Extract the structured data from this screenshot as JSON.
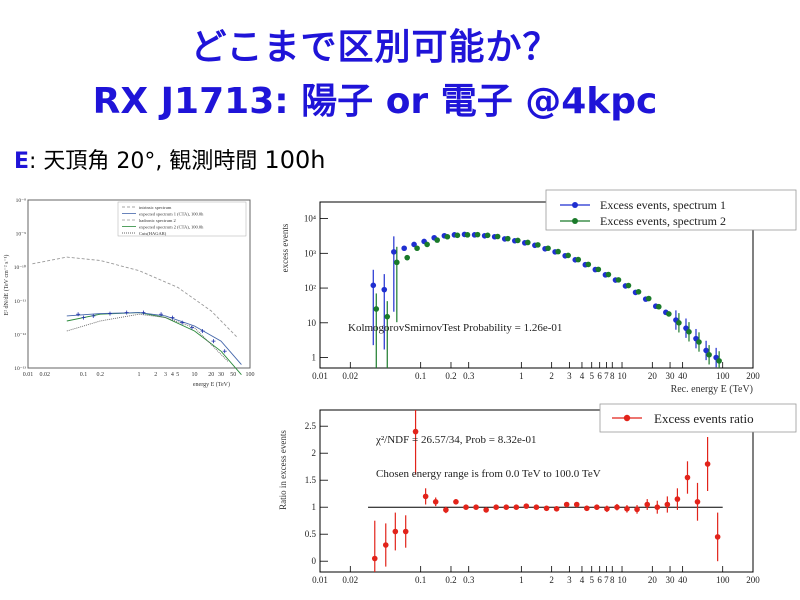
{
  "header": {
    "title_line1": "どこまで区別可能か？",
    "title_line2": "RX J1713: 陽子 or 電子 @4kpc",
    "sub_prefix": "E",
    "sub_text": ": 天頂角 20°, 観測時間",
    "sub_hours": "100h"
  },
  "left_panel": {
    "ylabel": "E² dN/dE (TeV cm⁻² s⁻¹)",
    "xlabel": "energy E (TeV)",
    "legend": [
      "intrinsic spectrum",
      "expected spectrum 1 (CTA), 100.0h",
      "hadronic spectrum 2",
      "expected spectrum 2 (CTA), 100.0h",
      "Cuts(HAGAR)"
    ],
    "x_ticks": [
      "0.01",
      "0.02",
      "0.1",
      "0.2",
      "1",
      "2",
      "3",
      "4",
      "5",
      "10",
      "20",
      "30",
      "50",
      "100"
    ],
    "y_ticks": [
      "10⁻⁸",
      "10⁻⁹",
      "10⁻¹⁰",
      "10⁻¹¹",
      "10⁻¹²",
      "10⁻¹³"
    ]
  },
  "chart_data": [
    {
      "type": "scatter",
      "title": "",
      "xlabel": "Rec. energy E (TeV)",
      "ylabel": "excess events",
      "xscale": "log",
      "yscale": "log",
      "xlim": [
        0.01,
        200
      ],
      "ylim": [
        0.5,
        30000
      ],
      "x_ticks": [
        "0.01",
        "0.02",
        "0.1",
        "0.2",
        "0.3",
        "1",
        "2",
        "3",
        "4",
        "5",
        "6",
        "7",
        "8",
        "10",
        "20",
        "30",
        "40",
        "100",
        "200"
      ],
      "y_ticks": [
        "1",
        "10",
        "10²",
        "10³",
        "10⁴"
      ],
      "legend_position": "top-right",
      "annotation": "KolmogorovSmirnovTest Probability = 1.26e-01",
      "series": [
        {
          "name": "Excess events, spectrum 1",
          "color": "#1f2fd0",
          "x": [
            0.035,
            0.045,
            0.056,
            0.071,
            0.089,
            0.112,
            0.141,
            0.178,
            0.224,
            0.282,
            0.355,
            0.447,
            0.562,
            0.708,
            0.891,
            1.12,
            1.41,
            1.78,
            2.24,
            2.82,
            3.55,
            4.47,
            5.62,
            7.08,
            8.91,
            11.2,
            14.1,
            17.8,
            22.4,
            28.2,
            35.5,
            44.7,
            56.2,
            70.8,
            89.1
          ],
          "y": [
            120,
            90,
            1100,
            1400,
            1800,
            2200,
            2800,
            3200,
            3400,
            3500,
            3400,
            3200,
            3000,
            2600,
            2300,
            2000,
            1700,
            1350,
            1100,
            850,
            650,
            470,
            340,
            240,
            170,
            115,
            75,
            48,
            30,
            20,
            12,
            7,
            3.5,
            1.6,
            1.0
          ]
        },
        {
          "name": "Excess events, spectrum 2",
          "color": "#1a7a2a",
          "x": [
            0.035,
            0.045,
            0.056,
            0.071,
            0.089,
            0.112,
            0.141,
            0.178,
            0.224,
            0.282,
            0.355,
            0.447,
            0.562,
            0.708,
            0.891,
            1.12,
            1.41,
            1.78,
            2.24,
            2.82,
            3.55,
            4.47,
            5.62,
            7.08,
            8.91,
            11.2,
            14.1,
            17.8,
            22.4,
            28.2,
            35.5,
            44.7,
            56.2,
            70.8,
            89.1
          ],
          "y": [
            25,
            15,
            550,
            750,
            1400,
            1800,
            2400,
            3000,
            3300,
            3400,
            3450,
            3300,
            3050,
            2650,
            2350,
            2050,
            1750,
            1400,
            1120,
            870,
            660,
            480,
            345,
            245,
            172,
            118,
            78,
            50,
            29,
            18,
            10,
            5.5,
            2.8,
            1.2,
            0.8
          ]
        }
      ]
    },
    {
      "type": "scatter",
      "title": "",
      "xlabel": "Rec. energy E (TeV)",
      "ylabel": "Ratio in excess events",
      "xscale": "log",
      "xlim": [
        0.01,
        200
      ],
      "ylim": [
        -0.2,
        2.8
      ],
      "x_ticks": [
        "0.01",
        "0.02",
        "0.1",
        "0.2",
        "0.3",
        "1",
        "2",
        "3",
        "4",
        "5",
        "6",
        "7",
        "8",
        "10",
        "20",
        "30",
        "40",
        "100",
        "200"
      ],
      "y_ticks": [
        "0",
        "0.5",
        "1",
        "1.5",
        "2",
        "2.5"
      ],
      "reference_line": 1.0,
      "legend_position": "top-right",
      "annotations": [
        "χ²/NDF = 26.57/34, Prob = 8.32e-01",
        "Chosen energy range is from 0.0 TeV to 100.0 TeV"
      ],
      "series": [
        {
          "name": "Excess events ratio",
          "color": "#e2231a",
          "x": [
            0.035,
            0.045,
            0.056,
            0.071,
            0.089,
            0.112,
            0.141,
            0.178,
            0.224,
            0.282,
            0.355,
            0.447,
            0.562,
            0.708,
            0.891,
            1.12,
            1.41,
            1.78,
            2.24,
            2.82,
            3.55,
            4.47,
            5.62,
            7.08,
            8.91,
            11.2,
            14.1,
            17.8,
            22.4,
            28.2,
            35.5,
            44.7,
            56.2,
            70.8,
            89.1
          ],
          "y": [
            0.05,
            0.3,
            0.55,
            0.55,
            2.4,
            1.2,
            1.1,
            0.95,
            1.1,
            1.0,
            1.0,
            0.95,
            1.0,
            1.0,
            1.0,
            1.02,
            1.0,
            0.98,
            0.97,
            1.05,
            1.05,
            0.98,
            1.0,
            0.97,
            1.0,
            0.97,
            0.96,
            1.05,
            1.0,
            1.05,
            1.15,
            1.55,
            1.1,
            1.8,
            0.45
          ],
          "err": [
            0.7,
            0.4,
            0.35,
            0.3,
            0.8,
            0.15,
            0.08,
            0.06,
            0.05,
            0.04,
            0.03,
            0.03,
            0.03,
            0.03,
            0.03,
            0.03,
            0.03,
            0.03,
            0.04,
            0.04,
            0.04,
            0.05,
            0.05,
            0.06,
            0.06,
            0.07,
            0.08,
            0.1,
            0.12,
            0.15,
            0.2,
            0.3,
            0.35,
            0.5,
            0.45
          ]
        }
      ]
    }
  ]
}
